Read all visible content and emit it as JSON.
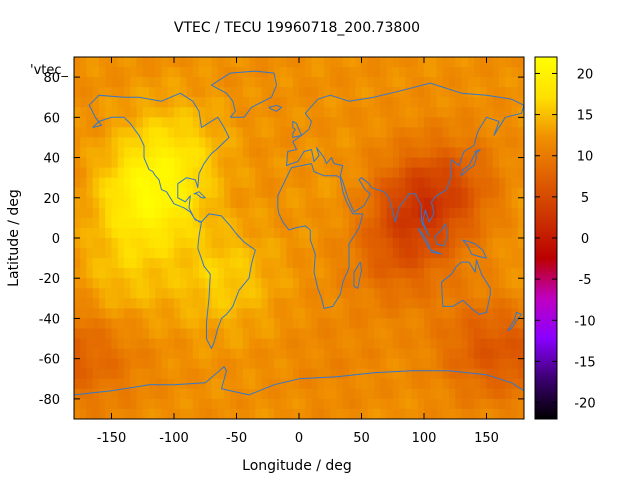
{
  "chart_data": {
    "type": "heatmap",
    "title": "VTEC / TECU 19960718_200.73800",
    "xlabel": "Longitude / deg",
    "ylabel": "Latitude / deg",
    "xlim": [
      -180,
      180
    ],
    "ylim": [
      -90,
      90
    ],
    "x_ticks": [
      -150,
      -100,
      -50,
      0,
      50,
      100,
      150
    ],
    "y_ticks": [
      -80,
      -60,
      -40,
      -20,
      0,
      20,
      40,
      60,
      80
    ],
    "legend_key": "'vtec_",
    "colorbar": {
      "range": [
        -22,
        22
      ],
      "ticks": [
        20,
        15,
        10,
        5,
        0,
        -5,
        -10,
        -15,
        -20
      ],
      "colors": [
        "#000000",
        "#3b0070",
        "#8a00ff",
        "#c000c0",
        "#bb0000",
        "#cc3300",
        "#e06000",
        "#f09000",
        "#ffe000",
        "#ffff00"
      ]
    },
    "map_overlay": "coastlines",
    "map_line_color": "#3377cc",
    "field_features": [
      {
        "lon": -120,
        "lat": 20,
        "vtec": 20
      },
      {
        "lon": -100,
        "lat": 45,
        "vtec": 16
      },
      {
        "lon": -60,
        "lat": -20,
        "vtec": 16
      },
      {
        "lon": -140,
        "lat": -20,
        "vtec": 15
      },
      {
        "lon": 40,
        "lat": 20,
        "vtec": 13
      },
      {
        "lon": 90,
        "lat": 15,
        "vtec": 6
      },
      {
        "lon": 120,
        "lat": 25,
        "vtec": 7
      },
      {
        "lon": 80,
        "lat": -10,
        "vtec": 8
      },
      {
        "lon": 150,
        "lat": -55,
        "vtec": 7
      },
      {
        "lon": -160,
        "lat": -60,
        "vtec": 9
      },
      {
        "lon": 30,
        "lat": -60,
        "vtec": 11
      }
    ],
    "background_vtec": 12
  }
}
